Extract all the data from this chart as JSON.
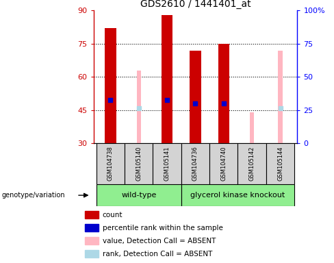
{
  "title": "GDS2610 / 1441401_at",
  "samples": [
    "GSM104738",
    "GSM105140",
    "GSM105141",
    "GSM104736",
    "GSM104740",
    "GSM105142",
    "GSM105144"
  ],
  "red_bars": [
    82,
    null,
    88,
    72,
    75,
    null,
    null
  ],
  "pink_bars": [
    null,
    63,
    null,
    null,
    null,
    44,
    72
  ],
  "blue_dots": [
    49.5,
    null,
    49.5,
    48,
    48,
    null,
    null
  ],
  "light_blue_dots": [
    null,
    46,
    null,
    null,
    null,
    null,
    46
  ],
  "ylim_left": [
    30,
    90
  ],
  "ylim_right": [
    0,
    100
  ],
  "yticks_left": [
    30,
    45,
    60,
    75,
    90
  ],
  "yticks_right": [
    0,
    25,
    50,
    75,
    100
  ],
  "ytick_labels_right": [
    "0",
    "25",
    "50",
    "75",
    "100%"
  ],
  "wt_count": 3,
  "gk_count": 4,
  "group_color": "#90EE90",
  "sample_bg": "#D3D3D3",
  "red_color": "#CC0000",
  "pink_color": "#FFB6C1",
  "blue_color": "#0000CC",
  "light_blue_color": "#ADD8E6",
  "bar_width": 0.4,
  "pink_bar_width": 0.15,
  "blue_dot_size": 18
}
